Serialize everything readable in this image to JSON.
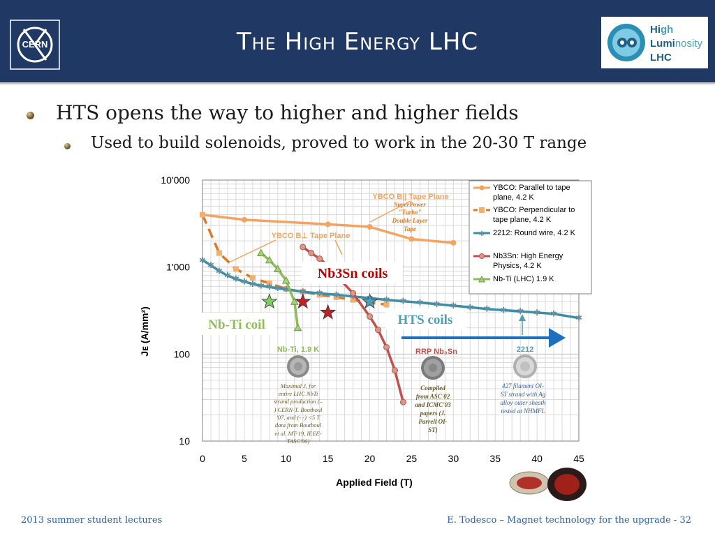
{
  "header": {
    "title": "The High Energy LHC",
    "logo_left": "CERN",
    "logo_right": {
      "line1_a": "Hi",
      "line1_b": "gh",
      "line2_a": "Lumi",
      "line2_b": "nosity",
      "line3": "LHC"
    }
  },
  "bullets": [
    "HTS opens the way to higher and higher fields",
    "Used to build solenoids, proved to work in the 20-30 T range"
  ],
  "footer": {
    "left": "2013 summer student lectures",
    "right": "E. Todesco – Magnet technology for the upgrade - 32"
  },
  "chart_data": {
    "type": "line",
    "title": "",
    "xlabel": "Applied Field (T)",
    "ylabel": "Jᴇ (A/mm²)",
    "xlim": [
      0,
      45
    ],
    "ylim": [
      10,
      10000
    ],
    "yscale": "log",
    "xticks": [
      "0",
      "5",
      "10",
      "15",
      "20",
      "25",
      "30",
      "35",
      "40",
      "45"
    ],
    "yticks": [
      "10",
      "100",
      "1'000",
      "10'000"
    ],
    "grid": true,
    "legend_position": "top-right",
    "series": [
      {
        "name": "YBCO: Parallel to tape plane, 4.2 K",
        "color": "#f4a460",
        "style": "solid",
        "x": [
          0,
          5,
          15,
          20,
          25,
          30
        ],
        "y": [
          4000,
          3500,
          3100,
          2900,
          2100,
          1900
        ]
      },
      {
        "name": "YBCO: Perpendicular to tape plane, 4.2 K",
        "color": "#e07820",
        "style": "dashed",
        "x": [
          0,
          2,
          4,
          6,
          8,
          10,
          12,
          14,
          16,
          18,
          20,
          22
        ],
        "y": [
          4000,
          1450,
          950,
          750,
          650,
          560,
          520,
          480,
          450,
          420,
          390,
          370
        ]
      },
      {
        "name": "2212: Round wire, 4.2 K",
        "color": "#3a8ea8",
        "style": "solid",
        "x": [
          0,
          1,
          2,
          3,
          4,
          5,
          6,
          7,
          8,
          9,
          10,
          12,
          14,
          16,
          18,
          20,
          22,
          24,
          26,
          28,
          30,
          32,
          34,
          36,
          38,
          40,
          42,
          45
        ],
        "y": [
          1200,
          1050,
          900,
          800,
          730,
          680,
          640,
          610,
          590,
          570,
          555,
          520,
          500,
          480,
          460,
          440,
          420,
          405,
          390,
          375,
          360,
          345,
          330,
          320,
          310,
          300,
          290,
          260
        ]
      },
      {
        "name": "",
        "color": "",
        "style": "",
        "x": [],
        "y": []
      },
      {
        "name": "Nb3Sn: High Energy Physics, 4.2 K",
        "color": "#c0504d",
        "style": "solid",
        "x": [
          12,
          13,
          14,
          15,
          16,
          18,
          20,
          21,
          22,
          23,
          24
        ],
        "y": [
          1700,
          1450,
          1250,
          1050,
          800,
          500,
          270,
          190,
          120,
          65,
          28
        ]
      },
      {
        "name": "Nb-Ti (LHC) 1.9 K",
        "color": "#8fbc5a",
        "style": "solid",
        "x": [
          7,
          8,
          9,
          10,
          11,
          11.4
        ],
        "y": [
          1450,
          1200,
          950,
          700,
          400,
          200
        ]
      }
    ],
    "stars": [
      {
        "x": 8,
        "y": 400,
        "color": "#7ccf5c"
      },
      {
        "x": 12,
        "y": 400,
        "color": "#c0202a"
      },
      {
        "x": 15,
        "y": 300,
        "color": "#c0202a"
      },
      {
        "x": 20,
        "y": 400,
        "color": "#4aa0b8"
      }
    ],
    "annotations": {
      "ybco_tape_plane_top": "YBCO B|| Tape Plane",
      "superpower": [
        "SuperPower",
        "\"Turbo\"",
        "Double Layer",
        "Tape"
      ],
      "ybco_tape_plane_mid": "YBCO B⊥ Tape Plane",
      "nb3sn_coils": "Nb3Sn coils",
      "nbti_coil": "Nb-Ti coil",
      "hts_coils": "HTS coils",
      "nbti_19k": "Nb-Ti, 1.9 K",
      "rrp_nb3sn": "RRP Nb₃Sn",
      "wire_2212": "2212",
      "maximal_jc": [
        "Maximal Jₑ for",
        "entire LHC NbTi",
        "strand production (–",
        ") CERN-T. Boutboul",
        "'07, and (- -) <5 T",
        "data from Boutboul",
        "et al. MT-19, IEEE-",
        "TASC'06)"
      ],
      "compiled": [
        "Compiled",
        "from ASC'02",
        "and ICMC'03",
        "papers (J.",
        "Parrell OI-",
        "ST)"
      ],
      "filament_427": [
        "427 filament OI-",
        "ST strand with Ag",
        "alloy outer sheath",
        "tested at NHMFL"
      ]
    }
  },
  "colors": {
    "header_bg": "#1f3864",
    "footer_text": "#2e5fa8",
    "nb3sn_label": "#c00000",
    "nbti_label": "#8fbc5a",
    "hts_label": "#4aa0b8",
    "arrow": "#1f6fc0"
  }
}
